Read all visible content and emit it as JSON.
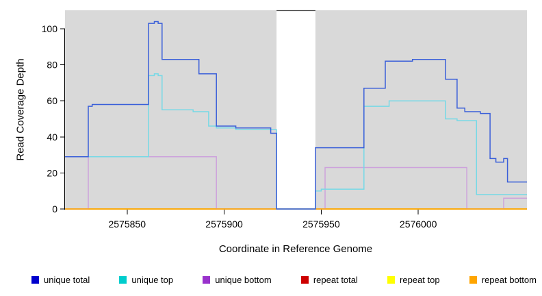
{
  "window": {
    "background": "#FFFFFF"
  },
  "chart_data": {
    "type": "line",
    "title": "",
    "xlabel": "Coordinate in Reference Genome",
    "ylabel": "Read Coverage Depth",
    "xlim": [
      2575818,
      2576056
    ],
    "ylim": [
      0,
      110
    ],
    "xticks": [
      2575850,
      2575900,
      2575950,
      2576000
    ],
    "yticks": [
      0,
      20,
      40,
      60,
      80,
      100
    ],
    "grid": false,
    "panel_color": "#D9D9D9",
    "background_panels": [
      [
        2575818,
        2575927
      ],
      [
        2575947,
        2576056
      ]
    ],
    "masked_region": [
      2575927,
      2575947
    ],
    "legend_position": "bottom",
    "legend_items": [
      {
        "label": "unique total",
        "color": "#0000CD"
      },
      {
        "label": "unique top",
        "color": "#00CDCD"
      },
      {
        "label": "unique bottom",
        "color": "#9932CC"
      },
      {
        "label": "repeat total",
        "color": "#CD0000"
      },
      {
        "label": "repeat top",
        "color": "#FFFF00"
      },
      {
        "label": "repeat bottom",
        "color": "#FFA500"
      }
    ],
    "series": [
      {
        "name": "repeat total",
        "line_color": "#CD0000",
        "points": [
          [
            2575818,
            0
          ],
          [
            2576056,
            0
          ]
        ]
      },
      {
        "name": "repeat top",
        "line_color": "#FFFF00",
        "points": [
          [
            2575818,
            0
          ],
          [
            2576056,
            0
          ]
        ]
      },
      {
        "name": "unique bottom",
        "line_color": "#CDA2DC",
        "points": [
          [
            2575818,
            0
          ],
          [
            2575830,
            0
          ],
          [
            2575830,
            29
          ],
          [
            2575896,
            29
          ],
          [
            2575896,
            0
          ],
          [
            2575952,
            0
          ],
          [
            2575952,
            23
          ],
          [
            2576025,
            23
          ],
          [
            2576025,
            0
          ],
          [
            2576044,
            0
          ],
          [
            2576044,
            6
          ],
          [
            2576056,
            6
          ]
        ]
      },
      {
        "name": "repeat bottom",
        "line_color": "#FFA500",
        "points": [
          [
            2575818,
            0
          ],
          [
            2576056,
            0
          ]
        ]
      },
      {
        "name": "unique top",
        "line_color": "#76D9E6",
        "points": [
          [
            2575818,
            29
          ],
          [
            2575861,
            29
          ],
          [
            2575861,
            74
          ],
          [
            2575864,
            74
          ],
          [
            2575864,
            75
          ],
          [
            2575866,
            75
          ],
          [
            2575866,
            74
          ],
          [
            2575868,
            74
          ],
          [
            2575868,
            55
          ],
          [
            2575884,
            55
          ],
          [
            2575884,
            54
          ],
          [
            2575892,
            54
          ],
          [
            2575892,
            46
          ],
          [
            2575896,
            46
          ],
          [
            2575896,
            45
          ],
          [
            2575906,
            45
          ],
          [
            2575906,
            44
          ],
          [
            2575927,
            44
          ],
          [
            2575927,
            0
          ],
          [
            2575947,
            0
          ],
          [
            2575947,
            10
          ],
          [
            2575950,
            10
          ],
          [
            2575950,
            11
          ],
          [
            2575972,
            11
          ],
          [
            2575972,
            57
          ],
          [
            2575985,
            57
          ],
          [
            2575985,
            60
          ],
          [
            2576014,
            60
          ],
          [
            2576014,
            50
          ],
          [
            2576020,
            50
          ],
          [
            2576020,
            49
          ],
          [
            2576030,
            49
          ],
          [
            2576030,
            8
          ],
          [
            2576056,
            8
          ]
        ]
      },
      {
        "name": "unique total",
        "line_color": "#3A5FD9",
        "points": [
          [
            2575818,
            29
          ],
          [
            2575830,
            29
          ],
          [
            2575830,
            57
          ],
          [
            2575832,
            57
          ],
          [
            2575832,
            58
          ],
          [
            2575861,
            58
          ],
          [
            2575861,
            103
          ],
          [
            2575864,
            103
          ],
          [
            2575864,
            104
          ],
          [
            2575866,
            104
          ],
          [
            2575866,
            103
          ],
          [
            2575868,
            103
          ],
          [
            2575868,
            83
          ],
          [
            2575887,
            83
          ],
          [
            2575887,
            75
          ],
          [
            2575896,
            75
          ],
          [
            2575896,
            46
          ],
          [
            2575906,
            46
          ],
          [
            2575906,
            45
          ],
          [
            2575924,
            45
          ],
          [
            2575924,
            42
          ],
          [
            2575927,
            42
          ],
          [
            2575927,
            0
          ],
          [
            2575947,
            0
          ],
          [
            2575947,
            34
          ],
          [
            2575972,
            34
          ],
          [
            2575972,
            67
          ],
          [
            2575983,
            67
          ],
          [
            2575983,
            82
          ],
          [
            2575997,
            82
          ],
          [
            2575997,
            83
          ],
          [
            2576014,
            83
          ],
          [
            2576014,
            72
          ],
          [
            2576020,
            72
          ],
          [
            2576020,
            56
          ],
          [
            2576024,
            56
          ],
          [
            2576024,
            54
          ],
          [
            2576032,
            54
          ],
          [
            2576032,
            53
          ],
          [
            2576037,
            53
          ],
          [
            2576037,
            28
          ],
          [
            2576040,
            28
          ],
          [
            2576040,
            26
          ],
          [
            2576044,
            26
          ],
          [
            2576044,
            28
          ],
          [
            2576046,
            28
          ],
          [
            2576046,
            15
          ],
          [
            2576056,
            15
          ]
        ]
      }
    ]
  }
}
